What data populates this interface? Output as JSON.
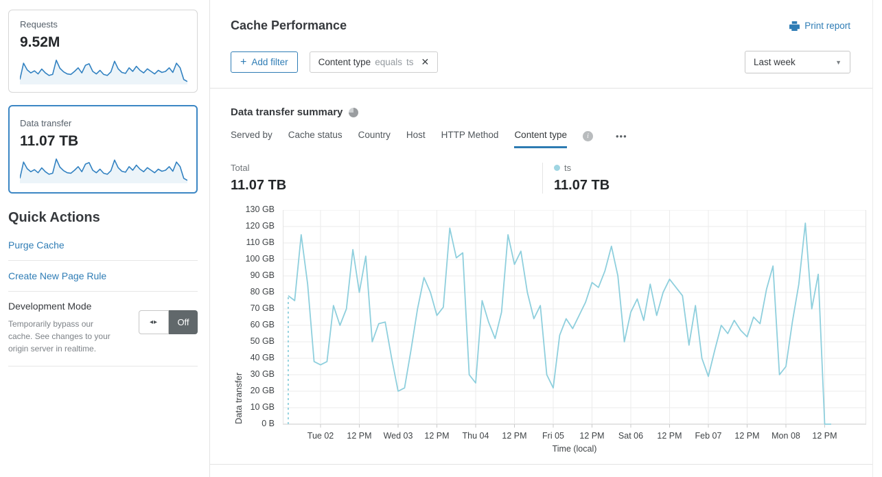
{
  "colors": {
    "accent_blue": "#2e7cb5",
    "selected_card_border": "#3b86c4",
    "sparkline_line": "#3181c1",
    "sparkline_fill": "rgba(49,129,193,0.09)",
    "chart_line": "#8ecfdd",
    "legend_dot": "#9fd5e2",
    "toggle_off_bg": "#61686b",
    "tab_underline": "#2d7bb2"
  },
  "icons": {
    "plus_glyph": "+",
    "close_glyph": "✕",
    "caret_glyph": "▼",
    "ellipsis_glyph": "•••",
    "dev_toggle_glyph": "◂▸",
    "info_glyph": "i"
  },
  "sidebar": {
    "cards": [
      {
        "label": "Requests",
        "value": "9.52M",
        "selected": false
      },
      {
        "label": "Data transfer",
        "value": "11.07 TB",
        "selected": true
      }
    ],
    "sparkline_values": [
      14,
      78,
      52,
      40,
      48,
      36,
      55,
      40,
      30,
      34,
      90,
      58,
      44,
      36,
      34,
      46,
      60,
      40,
      70,
      76,
      46,
      36,
      50,
      34,
      30,
      44,
      86,
      56,
      42,
      38,
      60,
      46,
      66,
      50,
      40,
      56,
      46,
      36,
      50,
      42,
      46,
      60,
      42,
      78,
      60,
      14,
      6
    ],
    "quick_actions": {
      "title": "Quick Actions",
      "links": [
        {
          "label": "Purge Cache"
        },
        {
          "label": "Create New Page Rule"
        }
      ],
      "dev_mode": {
        "title": "Development Mode",
        "description": "Temporarily bypass our cache. See changes to your origin server in realtime.",
        "state_label": "Off"
      }
    }
  },
  "header": {
    "title": "Cache Performance",
    "print_label": "Print report",
    "add_filter_label": "Add filter",
    "filter_chip": {
      "field": "Content type",
      "operator": "equals",
      "value": "ts"
    },
    "time_range_value": "Last week"
  },
  "summary": {
    "title": "Data transfer summary",
    "tabs": [
      {
        "label": "Served by",
        "active": false
      },
      {
        "label": "Cache status",
        "active": false
      },
      {
        "label": "Country",
        "active": false
      },
      {
        "label": "Host",
        "active": false
      },
      {
        "label": "HTTP Method",
        "active": false
      },
      {
        "label": "Content type",
        "active": true
      }
    ],
    "total_label": "Total",
    "total_value": "11.07 TB",
    "legend": {
      "series": "ts",
      "value": "11.07 TB"
    }
  },
  "chart_data": {
    "type": "line",
    "series_name": "ts",
    "ylabel": "Data transfer",
    "xlabel": "Time (local)",
    "unit": "GB",
    "ylim": [
      0,
      130
    ],
    "grid": true,
    "y_ticks": [
      "0 B",
      "10 GB",
      "20 GB",
      "30 GB",
      "40 GB",
      "50 GB",
      "60 GB",
      "70 GB",
      "80 GB",
      "90 GB",
      "100 GB",
      "110 GB",
      "120 GB",
      "130 GB"
    ],
    "x_ticks": [
      "Tue 02",
      "12 PM",
      "Wed 03",
      "12 PM",
      "Thu 04",
      "12 PM",
      "Fri 05",
      "12 PM",
      "Sat 06",
      "12 PM",
      "Feb 07",
      "12 PM",
      "Mon 08",
      "12 PM"
    ],
    "x_tick_interval_hours": 12,
    "dashed_start": true,
    "points_note": "t = hours relative to Tue 02 12:00 AM; value in GB",
    "points": [
      [
        -10,
        78
      ],
      [
        -8,
        75
      ],
      [
        -6,
        115
      ],
      [
        -4,
        85
      ],
      [
        -2,
        38
      ],
      [
        0,
        36
      ],
      [
        2,
        38
      ],
      [
        4,
        72
      ],
      [
        6,
        60
      ],
      [
        8,
        70
      ],
      [
        10,
        106
      ],
      [
        12,
        80
      ],
      [
        14,
        102
      ],
      [
        16,
        50
      ],
      [
        18,
        61
      ],
      [
        20,
        62
      ],
      [
        22,
        40
      ],
      [
        24,
        20
      ],
      [
        26,
        22
      ],
      [
        28,
        45
      ],
      [
        30,
        70
      ],
      [
        32,
        89
      ],
      [
        34,
        80
      ],
      [
        36,
        66
      ],
      [
        38,
        71
      ],
      [
        40,
        119
      ],
      [
        42,
        101
      ],
      [
        44,
        104
      ],
      [
        46,
        30
      ],
      [
        48,
        25
      ],
      [
        50,
        75
      ],
      [
        52,
        62
      ],
      [
        54,
        52
      ],
      [
        56,
        68
      ],
      [
        58,
        115
      ],
      [
        60,
        97
      ],
      [
        62,
        105
      ],
      [
        64,
        80
      ],
      [
        66,
        64
      ],
      [
        68,
        72
      ],
      [
        70,
        30
      ],
      [
        72,
        22
      ],
      [
        74,
        54
      ],
      [
        76,
        64
      ],
      [
        78,
        58
      ],
      [
        80,
        66
      ],
      [
        82,
        74
      ],
      [
        84,
        86
      ],
      [
        86,
        83
      ],
      [
        88,
        93
      ],
      [
        90,
        108
      ],
      [
        92,
        90
      ],
      [
        94,
        50
      ],
      [
        96,
        68
      ],
      [
        98,
        76
      ],
      [
        100,
        63
      ],
      [
        102,
        85
      ],
      [
        104,
        66
      ],
      [
        106,
        80
      ],
      [
        108,
        88
      ],
      [
        110,
        83
      ],
      [
        112,
        78
      ],
      [
        114,
        48
      ],
      [
        116,
        72
      ],
      [
        118,
        40
      ],
      [
        120,
        29
      ],
      [
        122,
        45
      ],
      [
        124,
        60
      ],
      [
        126,
        55
      ],
      [
        128,
        63
      ],
      [
        130,
        57
      ],
      [
        132,
        53
      ],
      [
        134,
        65
      ],
      [
        136,
        61
      ],
      [
        138,
        82
      ],
      [
        140,
        96
      ],
      [
        142,
        30
      ],
      [
        144,
        35
      ],
      [
        146,
        62
      ],
      [
        148,
        85
      ],
      [
        150,
        122
      ],
      [
        152,
        70
      ],
      [
        154,
        91
      ],
      [
        156,
        0
      ],
      [
        158,
        0
      ]
    ]
  }
}
